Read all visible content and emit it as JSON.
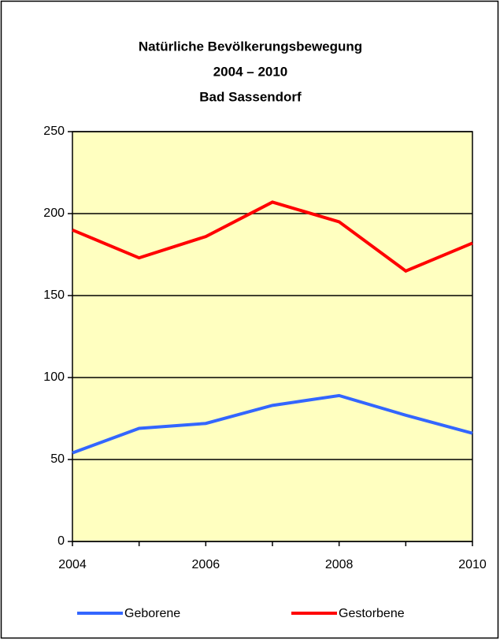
{
  "chart_data": {
    "type": "line",
    "title": [
      "Natürliche Bevölkerungsbewegung",
      "2004 – 2010",
      "Bad Sassendorf"
    ],
    "x": [
      2004,
      2005,
      2006,
      2007,
      2008,
      2009,
      2010
    ],
    "series": [
      {
        "name": "Geborene",
        "color": "#3366ff",
        "values": [
          54,
          69,
          72,
          83,
          89,
          77,
          66
        ]
      },
      {
        "name": "Gestorbene",
        "color": "#ff0000",
        "values": [
          190,
          173,
          186,
          207,
          195,
          165,
          182
        ]
      }
    ],
    "xlim": [
      2004,
      2010
    ],
    "xticks": [
      2004,
      2006,
      2008,
      2010
    ],
    "ylim": [
      0,
      250
    ],
    "yticks": [
      0,
      50,
      100,
      150,
      200,
      250
    ],
    "grid": true,
    "plot_background": "#ffffc0",
    "legend": "bottom"
  }
}
